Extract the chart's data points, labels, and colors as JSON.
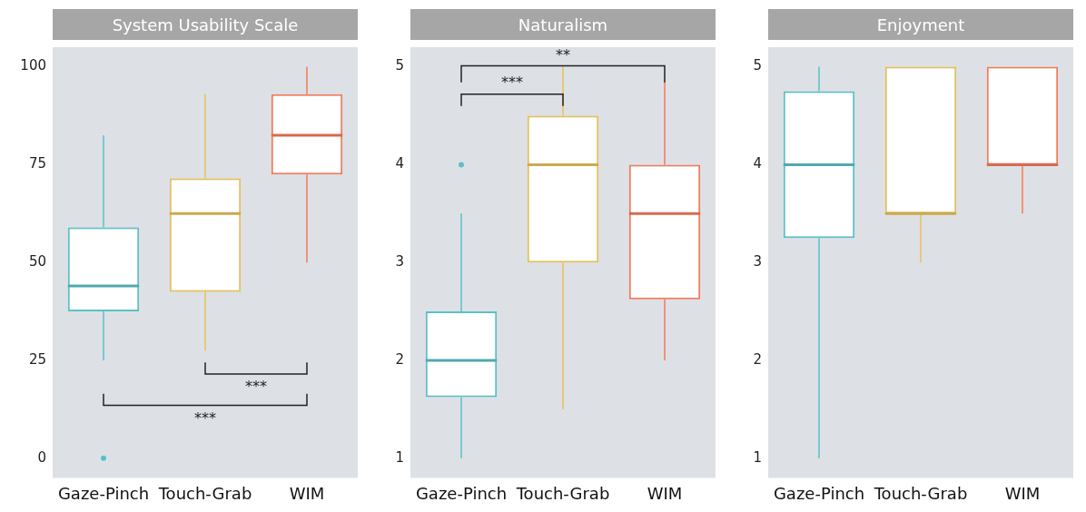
{
  "chart_data": [
    {
      "type": "box",
      "title": "System Usability Scale",
      "categories": [
        "Gaze-Pinch",
        "Touch-Grab",
        "WIM"
      ],
      "colors": [
        "#5bc0c8",
        "#e8c05a",
        "#f47a5a"
      ],
      "boxes": [
        {
          "low": 25,
          "q1": 37.5,
          "median": 44,
          "q3": 59,
          "high": 82.5,
          "outliers": [
            0
          ]
        },
        {
          "low": 27.5,
          "q1": 42.5,
          "median": 62.5,
          "q3": 71.5,
          "high": 93
        },
        {
          "low": 50,
          "q1": 72.5,
          "median": 82.5,
          "q3": 93,
          "high": 100
        }
      ],
      "ylim": [
        -5,
        105
      ],
      "yticks": [
        0,
        25,
        50,
        75,
        100
      ],
      "grid": false,
      "annotations": [
        "***",
        "***"
      ]
    },
    {
      "type": "box",
      "title": "Naturalism",
      "categories": [
        "Gaze-Pinch",
        "Touch-Grab",
        "WIM"
      ],
      "colors": [
        "#5bc0c8",
        "#e8c05a",
        "#f47a5a"
      ],
      "boxes": [
        {
          "low": 1,
          "q1": 1.625,
          "median": 2,
          "q3": 2.5,
          "high": 3.5,
          "outliers": [
            4
          ]
        },
        {
          "low": 1.5,
          "q1": 3,
          "median": 4,
          "q3": 4.5,
          "high": 5
        },
        {
          "low": 2,
          "q1": 2.625,
          "median": 3.5,
          "q3": 4,
          "high": 4.85
        }
      ],
      "ylim": [
        0.8,
        5.2
      ],
      "yticks": [
        1,
        2,
        3,
        4,
        5
      ],
      "grid": false,
      "annotations": [
        "***",
        "**"
      ]
    },
    {
      "type": "box",
      "title": "Enjoyment",
      "categories": [
        "Gaze-Pinch",
        "Touch-Grab",
        "WIM"
      ],
      "colors": [
        "#5bc0c8",
        "#e8c05a",
        "#f47a5a"
      ],
      "boxes": [
        {
          "low": 1,
          "q1": 3.25,
          "median": 4,
          "q3": 4.75,
          "high": 5
        },
        {
          "low": 3,
          "q1": 3.5,
          "median": 3.5,
          "q3": 5,
          "high": 5
        },
        {
          "low": 3.5,
          "q1": 4,
          "median": 4,
          "q3": 5,
          "high": 5
        }
      ],
      "ylim": [
        0.8,
        5.2
      ],
      "yticks": [
        1,
        2,
        3,
        4,
        5
      ],
      "grid": false
    }
  ]
}
